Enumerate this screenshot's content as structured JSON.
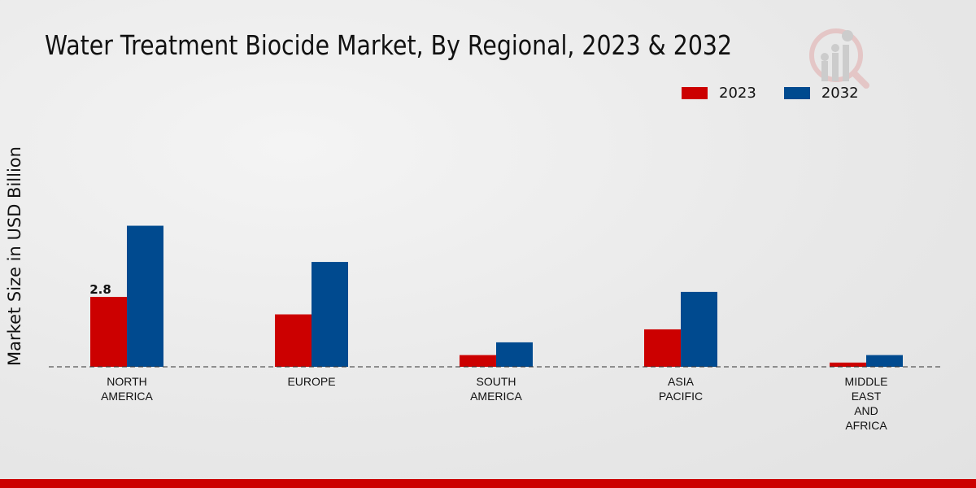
{
  "chart_data": {
    "type": "bar",
    "title": "Water Treatment Biocide Market, By Regional, 2023 & 2032",
    "xlabel": "",
    "ylabel": "Market Size in USD Billion",
    "categories": [
      [
        "NORTH",
        "AMERICA"
      ],
      [
        "EUROPE"
      ],
      [
        "SOUTH",
        "AMERICA"
      ],
      [
        "ASIA",
        "PACIFIC"
      ],
      [
        "MIDDLE",
        "EAST",
        "AND",
        "AFRICA"
      ]
    ],
    "series": [
      {
        "name": "2023",
        "color": "#cc0000",
        "values": [
          2.8,
          2.1,
          0.47,
          1.5,
          0.17
        ]
      },
      {
        "name": "2032",
        "color": "#004a8f",
        "values": [
          5.65,
          4.2,
          0.98,
          3.0,
          0.47
        ]
      }
    ],
    "data_labels": [
      {
        "series": 0,
        "index": 0,
        "text": "2.8"
      }
    ],
    "ylim": [
      0,
      7
    ],
    "grid": false,
    "legend_position": "top-right"
  }
}
